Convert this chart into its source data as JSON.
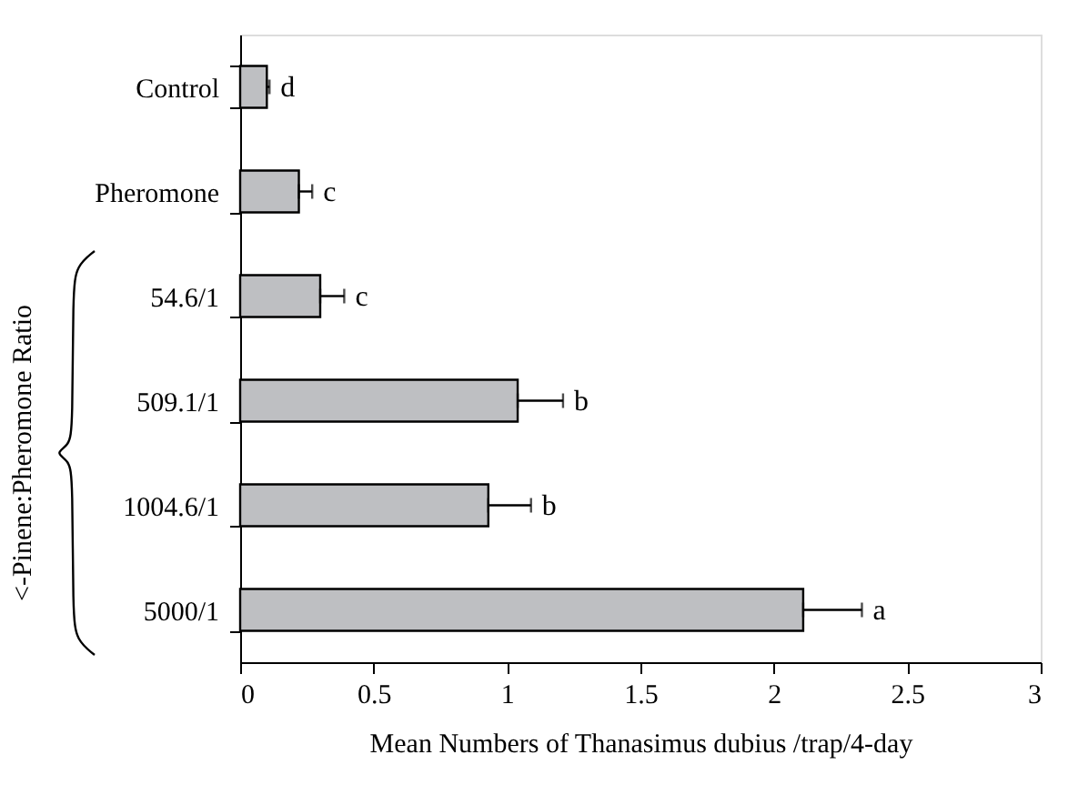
{
  "chart_data": {
    "type": "bar",
    "orientation": "horizontal",
    "xlabel": "Mean Numbers of Thanasimus dubius /trap/4-day",
    "categories": [
      "Control",
      "Pheromone",
      "54.6/1",
      "509.1/1",
      "1004.6/1",
      "5000/1"
    ],
    "values": [
      0.1,
      0.22,
      0.3,
      1.04,
      0.93,
      2.11
    ],
    "errors": [
      0.01,
      0.05,
      0.09,
      0.17,
      0.16,
      0.22
    ],
    "value_labels": [
      "d",
      "c",
      "c",
      "b",
      "b",
      "a"
    ],
    "color": "#bebfc2",
    "xlim": [
      0,
      3
    ],
    "xticks": [
      0,
      0.5,
      1,
      1.5,
      2,
      2.5,
      3
    ],
    "annotations": [
      "<-Pinene:Pheromone Ratio"
    ],
    "grid": false
  }
}
